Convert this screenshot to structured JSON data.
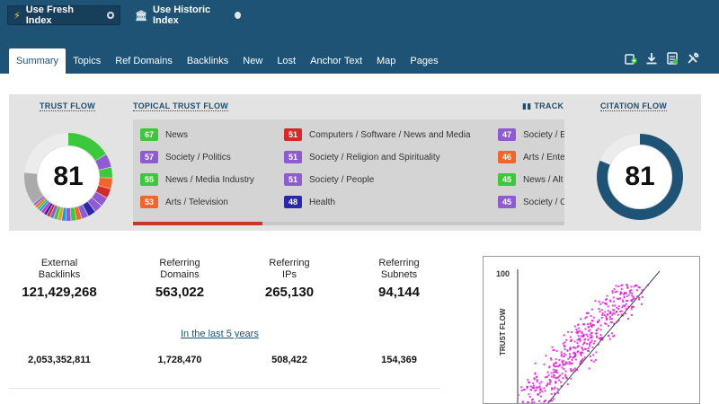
{
  "header": {
    "index_toggles": [
      {
        "label": "Use Fresh Index",
        "icon": "lightning-icon",
        "active": true
      },
      {
        "label": "Use Historic Index",
        "icon": "bank-icon",
        "active": false
      }
    ],
    "tabs": [
      "Summary",
      "Topics",
      "Ref Domains",
      "Backlinks",
      "New",
      "Lost",
      "Anchor Text",
      "Map",
      "Pages"
    ],
    "active_tab": "Summary",
    "tools": [
      "add-to-bucket-icon",
      "download-icon",
      "report-icon",
      "tools-icon"
    ]
  },
  "trust_flow": {
    "title": "TRUST FLOW",
    "value": "81"
  },
  "topical_trust_flow": {
    "title": "TOPICAL TRUST FLOW",
    "track_label": "TRACK",
    "topics": [
      {
        "score": "67",
        "label": "News",
        "color": "#3cc83c"
      },
      {
        "score": "57",
        "label": "Society / Politics",
        "color": "#8e5bd1"
      },
      {
        "score": "55",
        "label": "News / Media Industry",
        "color": "#3cc83c"
      },
      {
        "score": "53",
        "label": "Arts / Television",
        "color": "#f0662a"
      },
      {
        "score": "51",
        "label": "Computers / Software / News and Media",
        "color": "#d42a2a"
      },
      {
        "score": "51",
        "label": "Society / Religion and Spirituality",
        "color": "#8e5bd1"
      },
      {
        "score": "51",
        "label": "Society / People",
        "color": "#8e5bd1"
      },
      {
        "score": "48",
        "label": "Health",
        "color": "#2a2aa8"
      },
      {
        "score": "47",
        "label": "Society / E",
        "color": "#8e5bd1"
      },
      {
        "score": "46",
        "label": "Arts / Ente",
        "color": "#f0662a"
      },
      {
        "score": "45",
        "label": "News / Alt",
        "color": "#3cc83c"
      },
      {
        "score": "45",
        "label": "Society / C",
        "color": "#8e5bd1"
      }
    ]
  },
  "citation_flow": {
    "title": "CITATION FLOW",
    "value": "81"
  },
  "stats": [
    {
      "label_line1": "External",
      "label_line2": "Backlinks",
      "value": "121,429,268",
      "historic": "2,053,352,811"
    },
    {
      "label_line1": "Referring",
      "label_line2": "Domains",
      "value": "563,022",
      "historic": "1,728,470"
    },
    {
      "label_line1": "Referring",
      "label_line2": "IPs",
      "value": "265,130",
      "historic": "508,422"
    },
    {
      "label_line1": "Referring",
      "label_line2": "Subnets",
      "value": "94,144",
      "historic": "154,369"
    }
  ],
  "period_link": "In the last 5 years",
  "scatter": {
    "ytick": "100",
    "ylabel": "TRUST FLOW",
    "point_color": "#e020d8"
  }
}
